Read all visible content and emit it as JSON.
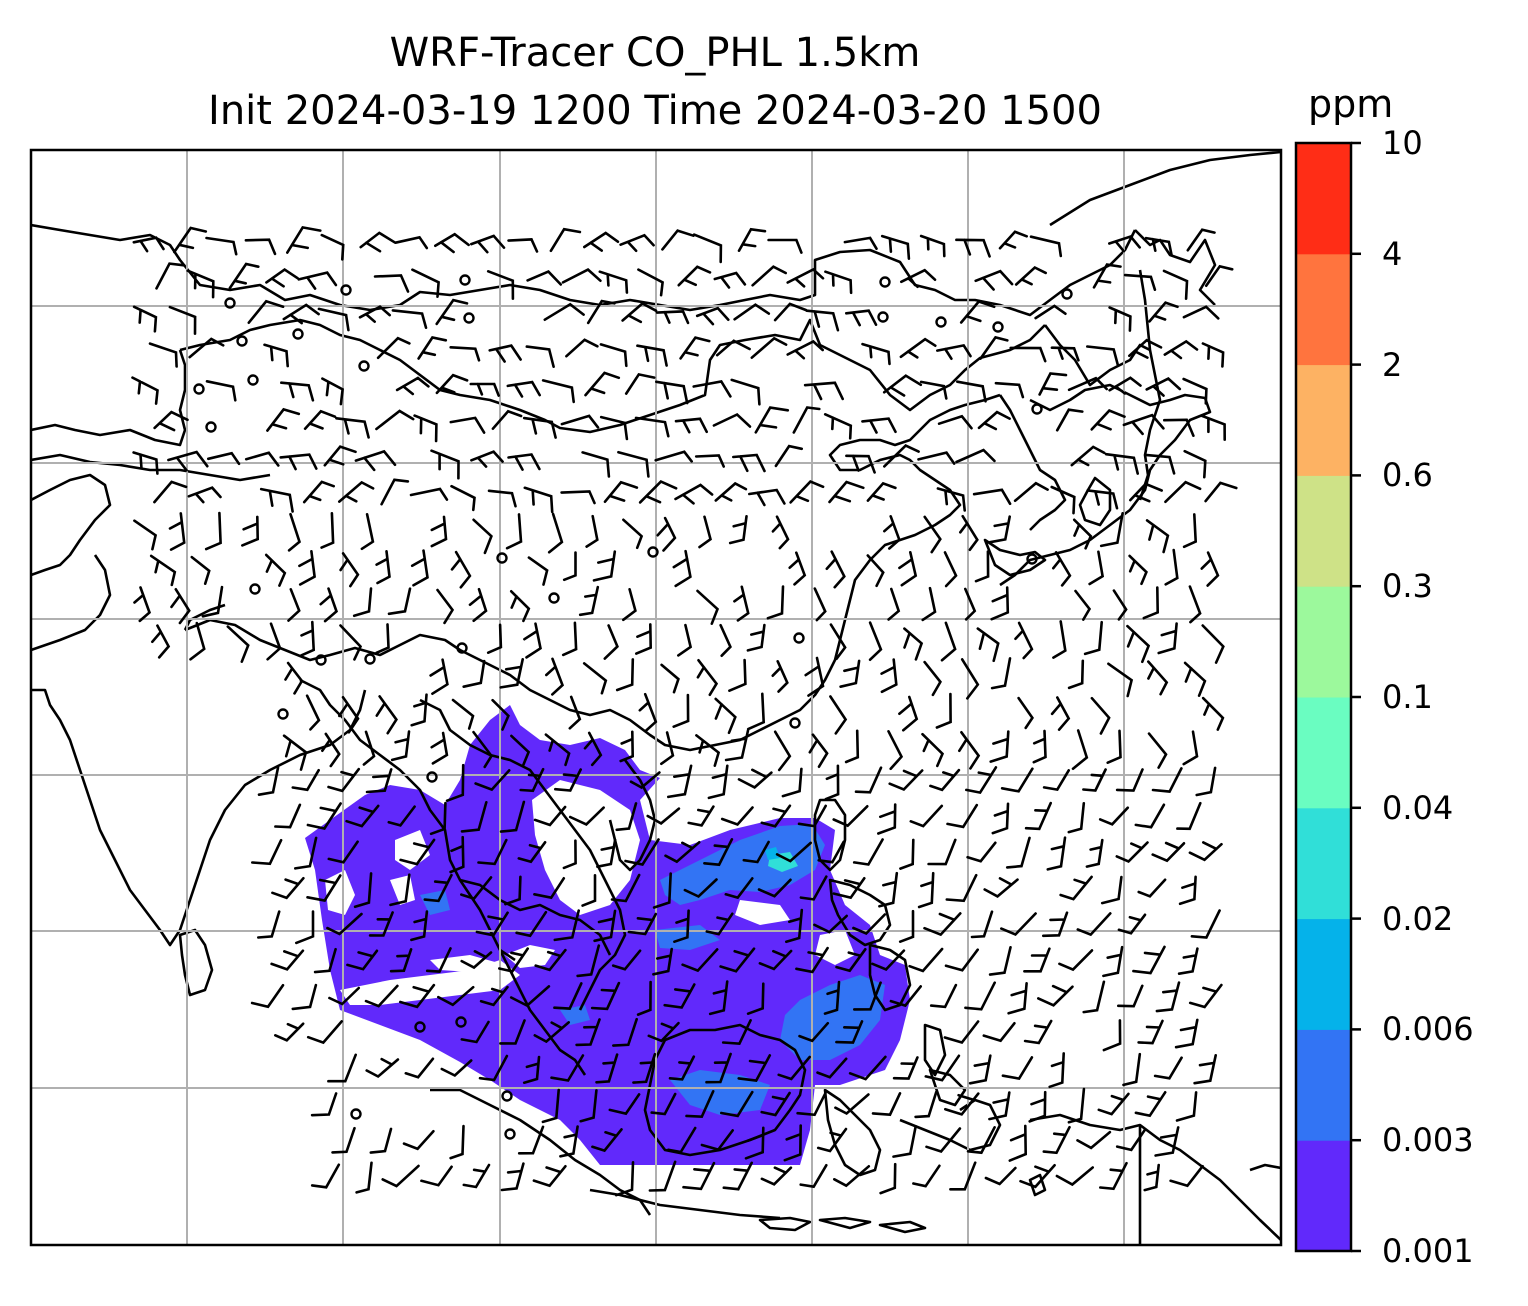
{
  "title_line1": "WRF-Tracer CO_PHL 1.5km",
  "title_line2": "Init 2024-03-19 1200 Time 2024-03-20 1500",
  "colorbar": {
    "unit": "ppm",
    "levels": [
      "0.001",
      "0.003",
      "0.006",
      "0.02",
      "0.04",
      "0.1",
      "0.3",
      "0.6",
      "2",
      "4",
      "10"
    ],
    "colors": [
      "#6129fb",
      "#3274f4",
      "#05b2ea",
      "#30dfd8",
      "#6afdc1",
      "#9cf99c",
      "#cee287",
      "#fdb263",
      "#ff743e",
      "#ff2d16"
    ]
  },
  "plume": {
    "level_main": "0.001",
    "level_inner": "0.003",
    "level_core": "0.02"
  },
  "wind_barbs_note_none": ""
}
